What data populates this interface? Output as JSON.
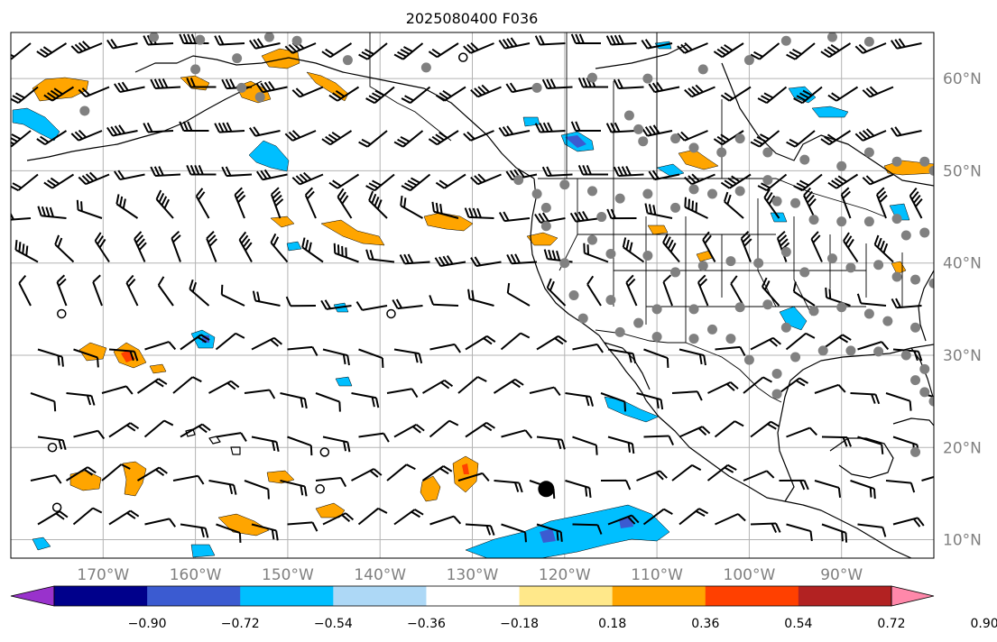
{
  "title": "2025080400 F036",
  "map": {
    "lon_range": [
      -180,
      -80
    ],
    "lat_range": [
      8,
      65
    ],
    "lon_ticks": [
      -170,
      -160,
      -150,
      -140,
      -130,
      -120,
      -110,
      -100,
      -90
    ],
    "lat_ticks": [
      10,
      20,
      30,
      40,
      50,
      60
    ],
    "lon_labels": [
      "170°W",
      "160°W",
      "150°W",
      "140°W",
      "130°W",
      "120°W",
      "110°W",
      "100°W",
      "90°W"
    ],
    "lat_labels": [
      "10°N",
      "20°N",
      "30°N",
      "40°N",
      "50°N",
      "60°N"
    ],
    "grid": true,
    "tick_label_color": "#808080"
  },
  "colorbar": {
    "ticks": [
      "−0.90",
      "−0.72",
      "−0.54",
      "−0.36",
      "−0.18",
      "0.18",
      "0.36",
      "0.54",
      "0.72",
      "0.90"
    ],
    "colors": [
      "#9932cc",
      "#00008b",
      "#3b5bd1",
      "#00bfff",
      "#add8f6",
      "#ffffff",
      "#ffe88a",
      "#ffa500",
      "#ff4000",
      "#b22222",
      "#ff88aa"
    ],
    "extend": "both"
  },
  "markers": {
    "storm": {
      "lon": -122,
      "lat": 15.5
    },
    "stations": [
      [
        -164.5,
        64.5
      ],
      [
        -160,
        61
      ],
      [
        -159.5,
        64.2
      ],
      [
        -155.5,
        62.2
      ],
      [
        -152,
        64.5
      ],
      [
        -149,
        64.1
      ],
      [
        -143.5,
        62
      ],
      [
        -135,
        61.2
      ],
      [
        -172,
        56.5
      ],
      [
        -155,
        59
      ],
      [
        -153,
        58
      ],
      [
        -123,
        59
      ],
      [
        -117,
        60.1
      ],
      [
        -111,
        60
      ],
      [
        -105,
        61
      ],
      [
        -100,
        62
      ],
      [
        -96,
        64.1
      ],
      [
        -91,
        64.5
      ],
      [
        -87,
        64
      ],
      [
        -113,
        56
      ],
      [
        -112,
        54.5
      ],
      [
        -111.5,
        53.2
      ],
      [
        -108,
        53.5
      ],
      [
        -106,
        52.5
      ],
      [
        -103,
        52
      ],
      [
        -101,
        53.5
      ],
      [
        -98,
        52
      ],
      [
        -94,
        51.2
      ],
      [
        -90,
        50.5
      ],
      [
        -87,
        52
      ],
      [
        -84,
        51
      ],
      [
        -81,
        51
      ],
      [
        -80,
        50
      ],
      [
        -125,
        49
      ],
      [
        -123,
        47.5
      ],
      [
        -122,
        46
      ],
      [
        -120,
        48.5
      ],
      [
        -117,
        47.8
      ],
      [
        -116,
        45
      ],
      [
        -114,
        47
      ],
      [
        -111,
        47.5
      ],
      [
        -108,
        46
      ],
      [
        -106,
        48
      ],
      [
        -104,
        47.5
      ],
      [
        -101,
        47.8
      ],
      [
        -98,
        49
      ],
      [
        -97,
        46.7
      ],
      [
        -95,
        46.5
      ],
      [
        -93,
        44.7
      ],
      [
        -90,
        44.5
      ],
      [
        -87,
        44.5
      ],
      [
        -84,
        44.8
      ],
      [
        -83,
        43
      ],
      [
        -81,
        43.3
      ],
      [
        -122,
        44
      ],
      [
        -120,
        40
      ],
      [
        -117,
        42.5
      ],
      [
        -115,
        41
      ],
      [
        -111,
        40.8
      ],
      [
        -108,
        39
      ],
      [
        -105,
        39.7
      ],
      [
        -102,
        40.2
      ],
      [
        -99,
        40
      ],
      [
        -96,
        41.2
      ],
      [
        -94,
        39
      ],
      [
        -91,
        40.5
      ],
      [
        -89,
        39.5
      ],
      [
        -86,
        39.8
      ],
      [
        -84,
        38.5
      ],
      [
        -82,
        38.2
      ],
      [
        -80,
        37.8
      ],
      [
        -119,
        36.5
      ],
      [
        -115,
        36
      ],
      [
        -112,
        33.5
      ],
      [
        -110,
        35
      ],
      [
        -106,
        35
      ],
      [
        -104,
        32.8
      ],
      [
        -101,
        35.2
      ],
      [
        -98,
        35.5
      ],
      [
        -96,
        33
      ],
      [
        -93,
        34.8
      ],
      [
        -90,
        35.2
      ],
      [
        -87,
        34.5
      ],
      [
        -85,
        33.7
      ],
      [
        -82,
        33
      ],
      [
        -118,
        34
      ],
      [
        -114,
        32.5
      ],
      [
        -110,
        32
      ],
      [
        -106,
        31.8
      ],
      [
        -102,
        31.8
      ],
      [
        -100,
        29.5
      ],
      [
        -97,
        28
      ],
      [
        -97,
        25.8
      ],
      [
        -95,
        29.8
      ],
      [
        -92,
        30.5
      ],
      [
        -89,
        30.5
      ],
      [
        -86,
        30.4
      ],
      [
        -83,
        30
      ],
      [
        -81,
        28.5
      ],
      [
        -81,
        26
      ],
      [
        -82,
        27.3
      ],
      [
        -80,
        25
      ],
      [
        -82,
        19.5
      ]
    ],
    "rings": [
      [
        -131,
        62.3
      ],
      [
        -174.5,
        34.5
      ],
      [
        -138.8,
        34.5
      ],
      [
        -175.5,
        20
      ],
      [
        -146,
        19.5
      ],
      [
        -146.5,
        15.5
      ],
      [
        -175,
        13.5
      ]
    ]
  }
}
